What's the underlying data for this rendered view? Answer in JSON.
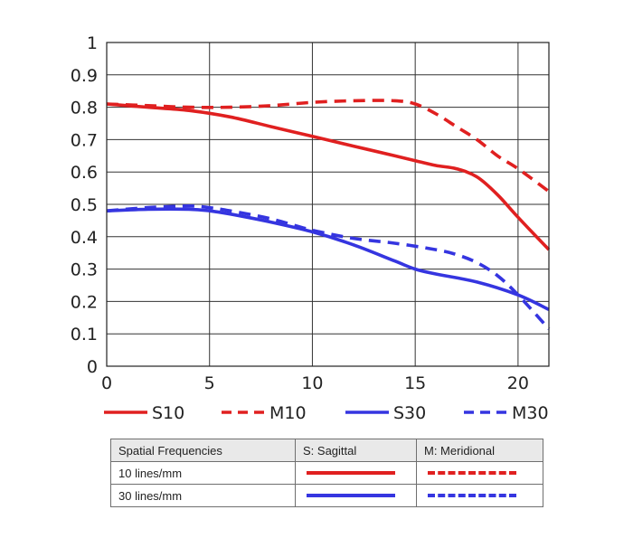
{
  "chart_data": {
    "type": "line",
    "title": "",
    "xlabel": "",
    "ylabel": "",
    "xlim": [
      0,
      21.5
    ],
    "ylim": [
      0,
      1
    ],
    "x_ticks": [
      "0",
      "5",
      "10",
      "15",
      "20"
    ],
    "y_ticks": [
      "0",
      "0.1",
      "0.2",
      "0.3",
      "0.4",
      "0.5",
      "0.6",
      "0.7",
      "0.8",
      "0.9",
      "1"
    ],
    "grid": true,
    "legend_position": "bottom",
    "series": [
      {
        "name": "S10",
        "color": "#e02020",
        "style": "solid",
        "x": [
          0,
          2,
          4,
          6,
          8,
          10,
          12,
          14,
          15,
          16,
          17,
          18,
          19,
          20,
          21.5
        ],
        "y": [
          0.81,
          0.8,
          0.79,
          0.77,
          0.74,
          0.71,
          0.68,
          0.65,
          0.635,
          0.62,
          0.61,
          0.585,
          0.53,
          0.46,
          0.36
        ]
      },
      {
        "name": "M10",
        "color": "#e02020",
        "style": "dashed",
        "x": [
          0,
          2,
          4,
          6,
          8,
          10,
          12,
          14,
          15,
          16,
          17,
          18,
          19,
          20,
          21.5
        ],
        "y": [
          0.81,
          0.805,
          0.8,
          0.8,
          0.805,
          0.815,
          0.82,
          0.82,
          0.81,
          0.78,
          0.74,
          0.7,
          0.65,
          0.61,
          0.54
        ]
      },
      {
        "name": "S30",
        "color": "#3535e0",
        "style": "solid",
        "x": [
          0,
          2,
          4,
          5,
          6,
          8,
          10,
          12,
          14,
          15,
          16,
          18,
          20,
          21.5
        ],
        "y": [
          0.48,
          0.485,
          0.485,
          0.48,
          0.47,
          0.445,
          0.415,
          0.375,
          0.325,
          0.3,
          0.285,
          0.26,
          0.22,
          0.175
        ]
      },
      {
        "name": "M30",
        "color": "#3535e0",
        "style": "dashed",
        "x": [
          0,
          2,
          4,
          5,
          6,
          8,
          10,
          12,
          14,
          16,
          17,
          18,
          19,
          20,
          21.5
        ],
        "y": [
          0.48,
          0.49,
          0.495,
          0.49,
          0.48,
          0.455,
          0.42,
          0.395,
          0.38,
          0.36,
          0.345,
          0.32,
          0.28,
          0.22,
          0.115
        ]
      }
    ]
  },
  "legend_table": {
    "headers": [
      "Spatial Frequencies",
      "S: Sagittal",
      "M: Meridional"
    ],
    "rows": [
      {
        "label": "10 lines/mm",
        "color": "#e02020"
      },
      {
        "label": "30 lines/mm",
        "color": "#3535e0"
      }
    ]
  }
}
